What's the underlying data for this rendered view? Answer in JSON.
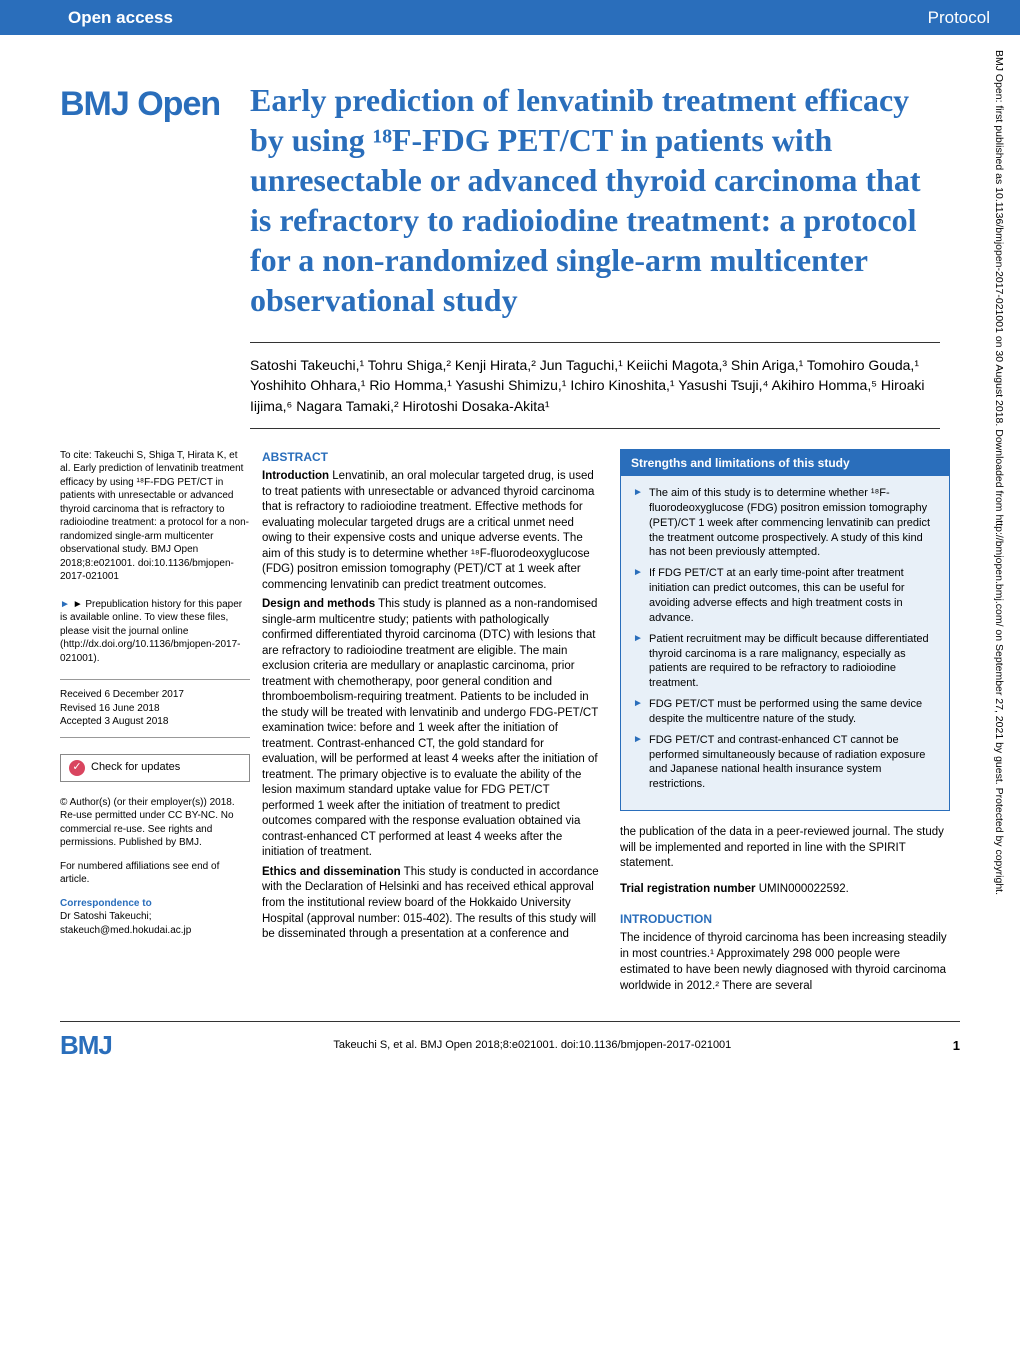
{
  "header": {
    "left": "Open access",
    "right": "Protocol"
  },
  "journal_logo": "BMJ Open",
  "title": "Early prediction of lenvatinib treatment efficacy by using ¹⁸F-FDG PET/CT in patients with unresectable or advanced thyroid carcinoma that is refractory to radioiodine treatment: a protocol for a non-randomized single-arm multicenter observational study",
  "authors_line": "Satoshi Takeuchi,¹ Tohru Shiga,² Kenji Hirata,² Jun Taguchi,¹ Keiichi Magota,³ Shin Ariga,¹ Tomohiro Gouda,¹ Yoshihito Ohhara,¹ Rio Homma,¹ Yasushi Shimizu,¹ Ichiro Kinoshita,¹ Yasushi Tsuji,⁴ Akihiro Homma,⁵ Hiroaki Iijima,⁶ Nagara Tamaki,² Hirotoshi Dosaka-Akita¹",
  "left_sidebar": {
    "to_cite": "To cite: Takeuchi S, Shiga T, Hirata K, et al. Early prediction of lenvatinib treatment efficacy by using ¹⁸F-FDG PET/CT in patients with unresectable or advanced thyroid carcinoma that is refractory to radioiodine treatment: a protocol for a non-randomized single-arm multicenter observational study. BMJ Open 2018;8:e021001. doi:10.1136/bmjopen-2017-021001",
    "prepub": "► Prepublication history for this paper is available online. To view these files, please visit the journal online (http://dx.doi.org/10.1136/bmjopen-2017-021001).",
    "received": "Received 6 December 2017",
    "revised": "Revised 16 June 2018",
    "accepted": "Accepted 3 August 2018",
    "check_updates": "Check for updates",
    "license": "© Author(s) (or their employer(s)) 2018. Re-use permitted under CC BY-NC. No commercial re-use. See rights and permissions. Published by BMJ.",
    "affil_note": "For numbered affiliations see end of article.",
    "corr_heading": "Correspondence to",
    "corr_name": "Dr Satoshi Takeuchi;",
    "corr_email": "stakeuch@med.hokudai.ac.jp"
  },
  "abstract": {
    "heading": "ABSTRACT",
    "intro_label": "Introduction",
    "intro": "Lenvatinib, an oral molecular targeted drug, is used to treat patients with unresectable or advanced thyroid carcinoma that is refractory to radioiodine treatment. Effective methods for evaluating molecular targeted drugs are a critical unmet need owing to their expensive costs and unique adverse events. The aim of this study is to determine whether ¹⁸F-fluorodeoxyglucose (FDG) positron emission tomography (PET)/CT at 1 week after commencing lenvatinib can predict treatment outcomes.",
    "design_label": "Design and methods",
    "design": "This study is planned as a non-randomised single-arm multicentre study; patients with pathologically confirmed differentiated thyroid carcinoma (DTC) with lesions that are refractory to radioiodine treatment are eligible. The main exclusion criteria are medullary or anaplastic carcinoma, prior treatment with chemotherapy, poor general condition and thromboembolism-requiring treatment. Patients to be included in the study will be treated with lenvatinib and undergo FDG-PET/CT examination twice: before and 1 week after the initiation of treatment. Contrast-enhanced CT, the gold standard for evaluation, will be performed at least 4 weeks after the initiation of treatment. The primary objective is to evaluate the ability of the lesion maximum standard uptake value for FDG PET/CT performed 1 week after the initiation of treatment to predict outcomes compared with the response evaluation obtained via contrast-enhanced CT performed at least 4 weeks after the initiation of treatment.",
    "ethics_label": "Ethics and dissemination",
    "ethics": "This study is conducted in accordance with the Declaration of Helsinki and has received ethical approval from the institutional review board of the Hokkaido University Hospital (approval number: 015-402). The results of this study will be disseminated through a presentation at a conference and"
  },
  "box": {
    "heading": "Strengths and limitations of this study",
    "items": [
      "The aim of this study is to determine whether ¹⁸F-fluorodeoxyglucose (FDG) positron emission tomography (PET)/CT 1 week after commencing lenvatinib can predict the treatment outcome prospectively. A study of this kind has not been previously attempted.",
      "If FDG PET/CT at an early time-point after treatment initiation can predict outcomes, this can be useful for avoiding adverse effects and high treatment costs in advance.",
      "Patient recruitment may be difficult because differentiated thyroid carcinoma is a rare malignancy, especially as patients are required to be refractory to radioiodine treatment.",
      "FDG PET/CT must be performed using the same device despite the multicentre nature of the study.",
      "FDG PET/CT and contrast-enhanced CT cannot be performed simultaneously because of radiation exposure and Japanese national health insurance system restrictions."
    ]
  },
  "right": {
    "after_box": "the publication of the data in a peer-reviewed journal. The study will be implemented and reported in line with the SPIRIT statement.",
    "trial_label": "Trial registration number",
    "trial_num": "UMIN000022592.",
    "intro_heading": "INTRODUCTION",
    "intro_text": "The incidence of thyroid carcinoma has been increasing steadily in most countries.¹ Approximately 298 000 people were estimated to have been newly diagnosed with thyroid carcinoma worldwide in 2012.² There are several"
  },
  "footer": {
    "bmj": "BMJ",
    "cite": "Takeuchi S, et al. BMJ Open 2018;8:e021001. doi:10.1136/bmjopen-2017-021001",
    "page": "1"
  },
  "side_text": "BMJ Open: first published as 10.1136/bmjopen-2017-021001 on 30 August 2018. Downloaded from http://bmjopen.bmj.com/ on September 27, 2021 by guest. Protected by copyright.",
  "colors": {
    "brand": "#2a6ebb",
    "box_bg": "#e8f0f8",
    "text": "#000000",
    "rule": "#333333"
  }
}
